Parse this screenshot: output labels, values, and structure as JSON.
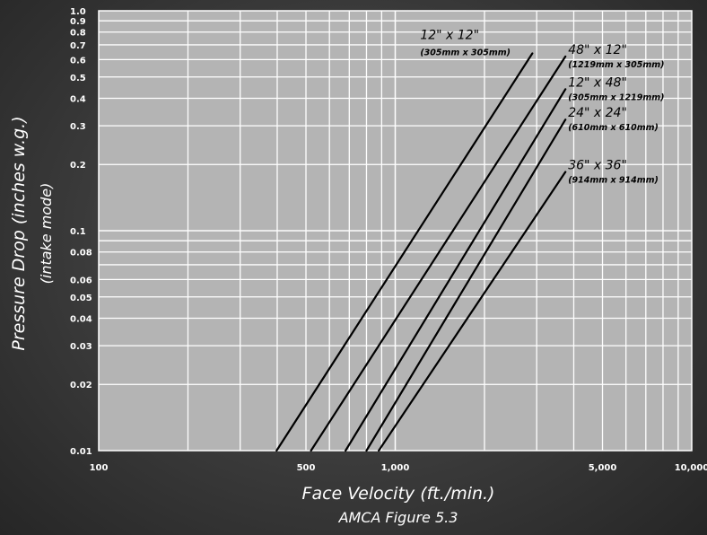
{
  "chart_data": {
    "type": "line",
    "x_scale": "log",
    "y_scale": "log",
    "xlim": [
      100,
      10000
    ],
    "ylim": [
      0.01,
      1.0
    ],
    "grid": true,
    "xlabel": "Face Velocity (ft./min.)",
    "caption": "AMCA Figure 5.3",
    "ylabel": "Pressure Drop (inches w.g.)",
    "ylabel_sub": "(intake mode)",
    "x_ticks": [
      {
        "value": 100,
        "label": "100"
      },
      {
        "value": 500,
        "label": "500"
      },
      {
        "value": 1000,
        "label": "1,000"
      },
      {
        "value": 5000,
        "label": "5,000"
      },
      {
        "value": 10000,
        "label": "10,000"
      }
    ],
    "y_ticks": [
      {
        "value": 0.01,
        "label": "0.01"
      },
      {
        "value": 0.02,
        "label": "0.02"
      },
      {
        "value": 0.03,
        "label": "0.03"
      },
      {
        "value": 0.04,
        "label": "0.04"
      },
      {
        "value": 0.05,
        "label": "0.05"
      },
      {
        "value": 0.06,
        "label": "0.06"
      },
      {
        "value": 0.08,
        "label": "0.08"
      },
      {
        "value": 0.1,
        "label": "0.1"
      },
      {
        "value": 0.2,
        "label": "0.2"
      },
      {
        "value": 0.3,
        "label": "0.3"
      },
      {
        "value": 0.4,
        "label": "0.4"
      },
      {
        "value": 0.5,
        "label": "0.5"
      },
      {
        "value": 0.6,
        "label": "0.6"
      },
      {
        "value": 0.7,
        "label": "0.7"
      },
      {
        "value": 0.8,
        "label": "0.8"
      },
      {
        "value": 0.9,
        "label": "0.9"
      },
      {
        "value": 1.0,
        "label": "1.0"
      }
    ],
    "series": [
      {
        "name": "12\" x 12\"",
        "sub": "(305mm x 305mm)",
        "points": [
          [
            398,
            0.01
          ],
          [
            2900,
            0.64
          ]
        ]
      },
      {
        "name": "48\" x 12\"",
        "sub": "(1219mm x 305mm)",
        "points": [
          [
            520,
            0.01
          ],
          [
            3750,
            0.62
          ]
        ]
      },
      {
        "name": "12\" x 48\"",
        "sub": "(305mm x 1219mm)",
        "points": [
          [
            680,
            0.01
          ],
          [
            3750,
            0.44
          ]
        ]
      },
      {
        "name": "24\" x 24\"",
        "sub": "(610mm x 610mm)",
        "points": [
          [
            800,
            0.01
          ],
          [
            3750,
            0.32
          ]
        ]
      },
      {
        "name": "36\" x 36\"",
        "sub": "(914mm x 914mm)",
        "points": [
          [
            880,
            0.01
          ],
          [
            3750,
            0.185
          ]
        ]
      }
    ]
  }
}
